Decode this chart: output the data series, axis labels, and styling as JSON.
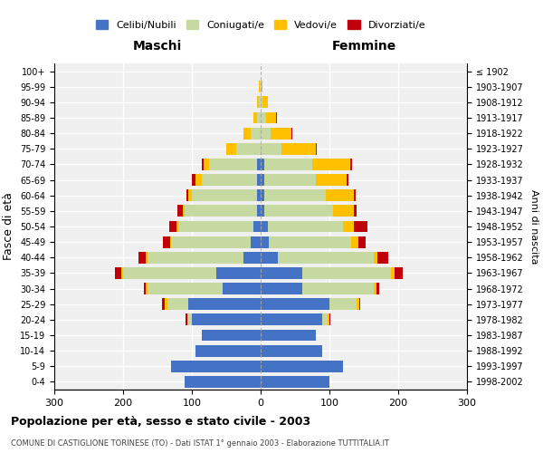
{
  "age_groups": [
    "0-4",
    "5-9",
    "10-14",
    "15-19",
    "20-24",
    "25-29",
    "30-34",
    "35-39",
    "40-44",
    "45-49",
    "50-54",
    "55-59",
    "60-64",
    "65-69",
    "70-74",
    "75-79",
    "80-84",
    "85-89",
    "90-94",
    "95-99",
    "100+"
  ],
  "birth_years": [
    "1998-2002",
    "1993-1997",
    "1988-1992",
    "1983-1987",
    "1978-1982",
    "1973-1977",
    "1968-1972",
    "1963-1967",
    "1958-1962",
    "1953-1957",
    "1948-1952",
    "1943-1947",
    "1938-1942",
    "1933-1937",
    "1928-1932",
    "1923-1927",
    "1918-1922",
    "1913-1917",
    "1908-1912",
    "1903-1907",
    "≤ 1902"
  ],
  "maschi": {
    "celibi": [
      110,
      130,
      95,
      85,
      100,
      105,
      55,
      65,
      25,
      15,
      10,
      5,
      5,
      5,
      5,
      0,
      0,
      0,
      0,
      0,
      0
    ],
    "coniugati": [
      0,
      0,
      0,
      0,
      5,
      30,
      110,
      135,
      140,
      115,
      110,
      105,
      95,
      80,
      70,
      35,
      15,
      5,
      2,
      1,
      0
    ],
    "vedovi": [
      0,
      0,
      0,
      0,
      2,
      5,
      2,
      2,
      2,
      2,
      3,
      3,
      5,
      10,
      8,
      15,
      10,
      5,
      3,
      1,
      0
    ],
    "divorziati": [
      0,
      0,
      0,
      0,
      2,
      3,
      3,
      10,
      10,
      10,
      10,
      8,
      3,
      5,
      3,
      0,
      0,
      0,
      0,
      0,
      0
    ]
  },
  "femmine": {
    "nubili": [
      100,
      120,
      90,
      80,
      90,
      100,
      60,
      60,
      25,
      12,
      10,
      5,
      5,
      5,
      5,
      0,
      0,
      0,
      0,
      0,
      0
    ],
    "coniugate": [
      0,
      0,
      0,
      0,
      8,
      40,
      105,
      130,
      140,
      120,
      110,
      100,
      90,
      75,
      70,
      30,
      15,
      8,
      3,
      1,
      0
    ],
    "vedove": [
      0,
      0,
      0,
      0,
      2,
      3,
      3,
      5,
      5,
      10,
      15,
      30,
      40,
      45,
      55,
      50,
      30,
      15,
      8,
      2,
      0
    ],
    "divorziate": [
      0,
      0,
      0,
      0,
      1,
      2,
      5,
      12,
      15,
      10,
      20,
      5,
      3,
      3,
      3,
      1,
      1,
      1,
      0,
      0,
      0
    ]
  },
  "colors": {
    "celibi_nubili": "#4472c4",
    "coniugati": "#c5d9a0",
    "vedovi": "#ffc000",
    "divorziati": "#c0000b"
  },
  "title": "Popolazione per età, sesso e stato civile - 2003",
  "subtitle": "COMUNE DI CASTIGLIONE TORINESE (TO) - Dati ISTAT 1° gennaio 2003 - Elaborazione TUTTITALIA.IT",
  "ylabel_left": "Fasce di età",
  "ylabel_right": "Anni di nascita",
  "xlabel_maschi": "Maschi",
  "xlabel_femmine": "Femmine",
  "xlim": 300,
  "legend_labels": [
    "Celibi/Nubili",
    "Coniugati/e",
    "Vedovi/e",
    "Divorziati/e"
  ],
  "bg_color": "#ffffff",
  "plot_bg_color": "#f0f0f0",
  "grid_color": "#ffffff",
  "bar_height": 0.75
}
